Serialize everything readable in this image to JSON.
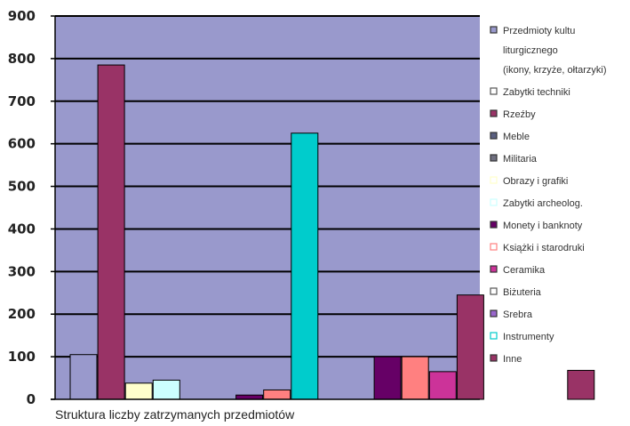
{
  "chart_data": {
    "type": "bar",
    "title": "",
    "caption": "Struktura liczby zatrzymanych przedmiotów",
    "xlabel": "",
    "ylabel": "",
    "ylim": [
      0,
      900
    ],
    "yticks": [
      "0",
      "100",
      "200",
      "300",
      "400",
      "500",
      "600",
      "700",
      "800",
      "900"
    ],
    "grid": true,
    "legend_position": "right",
    "series": [
      {
        "name": "Przedmioty kultu liturgicznego (ikony, krzyże, ołtarzyki)",
        "color": "#9999cc",
        "marker": "filled",
        "bars": [
          {
            "x": 0,
            "value": 105
          }
        ]
      },
      {
        "name": "Zabytki techniki",
        "color": "#ffffff",
        "marker": "hollow",
        "bars": []
      },
      {
        "name": "Rzeźby",
        "color": "#993366",
        "marker": "filled",
        "bars": [
          {
            "x": 1,
            "value": 785
          }
        ]
      },
      {
        "name": "Meble",
        "color": "#5a5f80",
        "marker": "filled",
        "bars": []
      },
      {
        "name": "Militaria",
        "color": "#707080",
        "marker": "filled",
        "bars": []
      },
      {
        "name": "Obrazy i grafiki",
        "color": "#ffffcc",
        "marker": "hollow",
        "bars": [
          {
            "x": 2,
            "value": 38
          }
        ]
      },
      {
        "name": "Zabytki archeolog.",
        "color": "#ccffff",
        "marker": "hollow",
        "bars": [
          {
            "x": 3,
            "value": 45
          }
        ]
      },
      {
        "name": "Monety i banknoty",
        "color": "#660066",
        "marker": "filled",
        "bars": [
          {
            "x": 6,
            "value": 10
          },
          {
            "x": 11,
            "value": 100
          }
        ]
      },
      {
        "name": "Książki i starodruki",
        "color": "#ff8080",
        "marker": "hollow",
        "bars": [
          {
            "x": 7,
            "value": 22
          },
          {
            "x": 12,
            "value": 100
          }
        ]
      },
      {
        "name": "Ceramika",
        "color": "#cc3399",
        "marker": "filled",
        "bars": [
          {
            "x": 13,
            "value": 65
          }
        ]
      },
      {
        "name": "Biżuteria",
        "color": "#ffffff",
        "marker": "hollow",
        "bars": []
      },
      {
        "name": "Srebra",
        "color": "#9966cc",
        "marker": "filled",
        "bars": []
      },
      {
        "name": "Instrumenty",
        "color": "#00cccc",
        "marker": "hollow",
        "bars": [
          {
            "x": 8,
            "value": 625
          }
        ]
      },
      {
        "name": "Inne",
        "color": "#993366",
        "marker": "filled",
        "bars": [
          {
            "x": 14,
            "value": 245
          },
          {
            "x": 18,
            "value": 68
          }
        ]
      }
    ],
    "colors": {
      "plot_background": "#9999cc",
      "gridline": "#000000"
    }
  }
}
